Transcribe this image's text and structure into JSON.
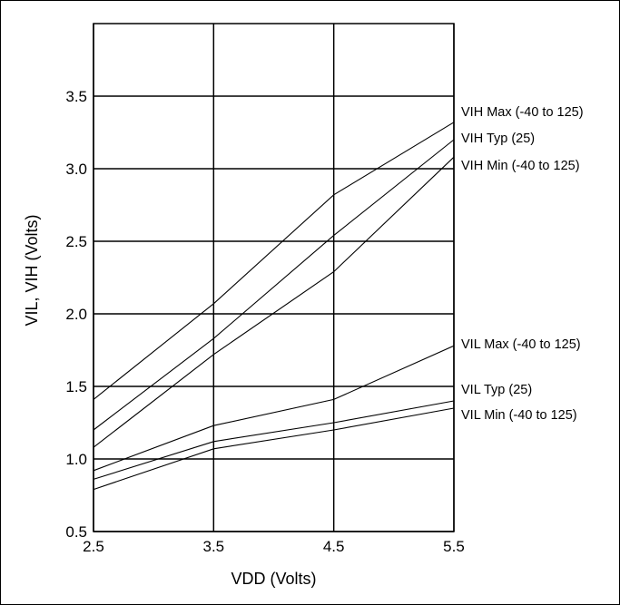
{
  "chart_data": {
    "type": "line",
    "xlabel": "VDD (Volts)",
    "ylabel": "VIL, VIH (Volts)",
    "xlim": [
      2.5,
      5.5
    ],
    "ylim": [
      0.5,
      4.0
    ],
    "xticks": [
      "2.5",
      "3.5",
      "4.5",
      "5.5"
    ],
    "yticks": [
      "0.5",
      "1.0",
      "1.5",
      "2.0",
      "2.5",
      "3.0",
      "3.5"
    ],
    "grid": true,
    "legend": "inline-right",
    "x": [
      2.5,
      3.5,
      4.5,
      5.5
    ],
    "series": [
      {
        "name": "VIH Max (-40 to 125)",
        "values": [
          1.41,
          2.07,
          2.82,
          3.32
        ]
      },
      {
        "name": "VIH Typ (25)",
        "values": [
          1.2,
          1.83,
          2.54,
          3.2
        ]
      },
      {
        "name": "VIH Min (-40 to 125)",
        "values": [
          1.08,
          1.72,
          2.29,
          3.08
        ]
      },
      {
        "name": "VIL Max (-40 to 125)",
        "values": [
          0.92,
          1.23,
          1.41,
          1.78
        ]
      },
      {
        "name": "VIL Typ (25)",
        "values": [
          0.86,
          1.12,
          1.25,
          1.4
        ]
      },
      {
        "name": "VIL Min (-40 to 125)",
        "values": [
          0.79,
          1.07,
          1.2,
          1.35
        ]
      }
    ]
  }
}
